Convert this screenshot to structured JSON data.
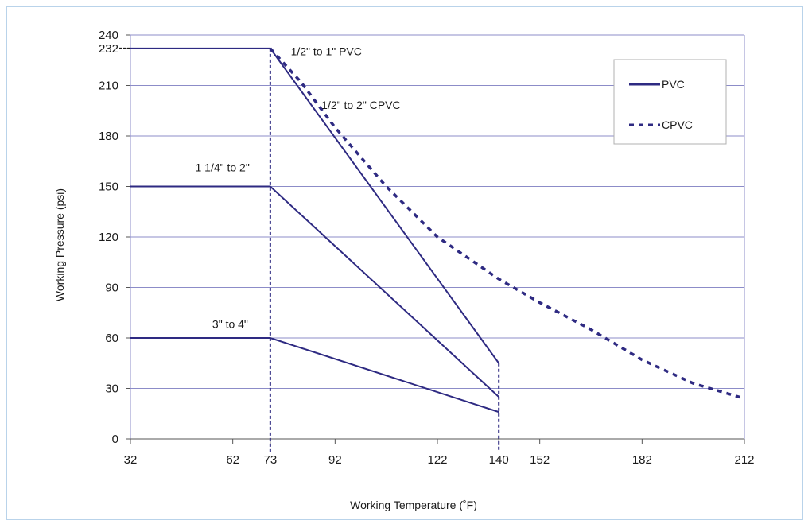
{
  "chart_data": {
    "type": "line",
    "title": "",
    "xlabel": "Working Temperature (˚F)",
    "ylabel": "Working Pressure (psi)",
    "xlim": [
      32,
      212
    ],
    "ylim": [
      0,
      240
    ],
    "x_ticks": [
      32,
      62,
      73,
      92,
      122,
      140,
      152,
      182,
      212
    ],
    "y_ticks": [
      0,
      30,
      60,
      90,
      120,
      150,
      180,
      210,
      232,
      240
    ],
    "grid": "horizontal",
    "legend_position": "top-right",
    "legend": [
      {
        "name": "PVC",
        "style": "solid"
      },
      {
        "name": "CPVC",
        "style": "dashed"
      }
    ],
    "colors": {
      "line": "#2e2a82",
      "grid": "#8c8cc8",
      "frame": "#b9d3ea"
    },
    "series": [
      {
        "label": "1/2\" to 1\" PVC",
        "type": "PVC",
        "style": "solid",
        "points": [
          [
            32,
            232
          ],
          [
            73,
            232
          ],
          [
            140,
            45
          ]
        ]
      },
      {
        "label": "1 1/4\" to 2\"",
        "type": "PVC",
        "style": "solid",
        "points": [
          [
            32,
            150
          ],
          [
            73,
            150
          ],
          [
            140,
            25
          ]
        ]
      },
      {
        "label": "3\" to 4\"",
        "type": "PVC",
        "style": "solid",
        "points": [
          [
            32,
            60
          ],
          [
            73,
            60
          ],
          [
            140,
            16
          ]
        ]
      },
      {
        "label": "1/2\" to 2\" CPVC",
        "type": "CPVC",
        "style": "dashed",
        "points": [
          [
            73,
            232
          ],
          [
            82,
            212
          ],
          [
            92,
            185
          ],
          [
            107,
            150
          ],
          [
            122,
            120
          ],
          [
            140,
            95
          ],
          [
            152,
            81
          ],
          [
            167,
            65
          ],
          [
            182,
            47
          ],
          [
            197,
            33
          ],
          [
            212,
            24
          ]
        ]
      }
    ],
    "reference_lines": [
      {
        "x": 73,
        "style": "dashed"
      },
      {
        "x": 140,
        "style": "dashed"
      }
    ],
    "annotations": [
      {
        "text": "1/2\" to 1\" PVC",
        "x": 79,
        "y": 228
      },
      {
        "text": "1/2\" to 2\" CPVC",
        "x": 88,
        "y": 196
      },
      {
        "text": "1 1/4\" to 2\"",
        "x": 51,
        "y": 159
      },
      {
        "text": "3\" to 4\"",
        "x": 56,
        "y": 66
      }
    ]
  }
}
